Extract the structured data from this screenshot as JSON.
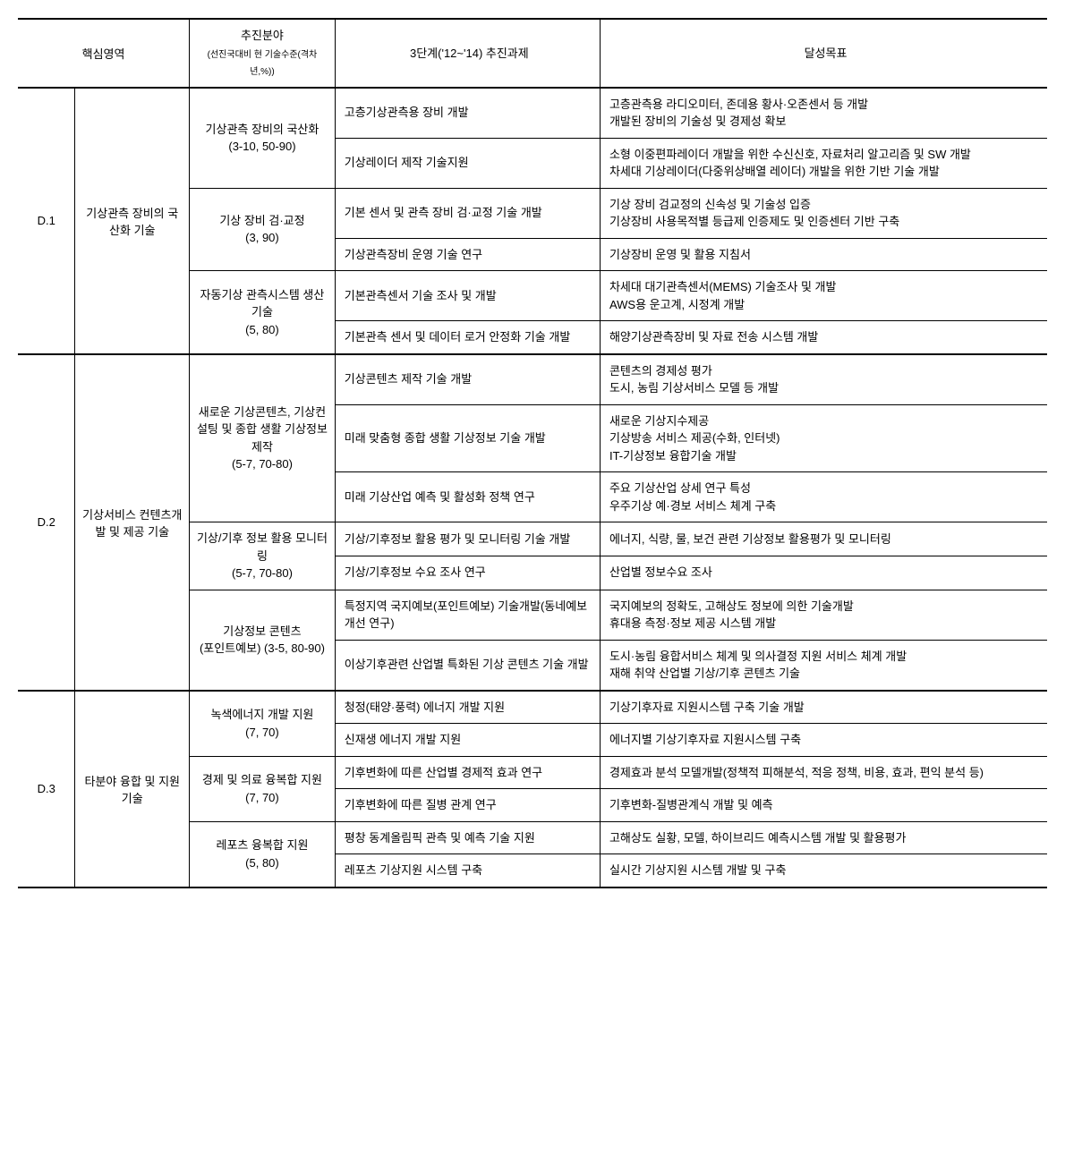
{
  "header": {
    "col1": "핵심영역",
    "col2_main": "추진분야",
    "col2_sub": "(선진국대비 현 기술수준(격차년,%))",
    "col3": "3단계('12~'14)  추진과제",
    "col4": "달성목표"
  },
  "sections": [
    {
      "code": "D.1",
      "area": "기상관측 장비의 국산화 기술",
      "groups": [
        {
          "field": "기상관측 장비의 국산화 (3-10, 50-90)",
          "rows": [
            {
              "task": "고층기상관측용 장비 개발",
              "goal": "고층관측용 라디오미터, 존데용 황사·오존센서 등 개발\n개발된 장비의 기술성 및 경제성 확보"
            },
            {
              "task": "기상레이더 제작 기술지원",
              "goal": "소형 이중편파레이더 개발을 위한 수신신호, 자료처리 알고리즘 및 SW 개발\n차세대 기상레이더(다중위상배열 레이더) 개발을 위한 기반 기술 개발"
            }
          ]
        },
        {
          "field": "기상 장비 검·교정 (3, 90)",
          "rows": [
            {
              "task": "기본 센서 및 관측 장비 검·교정 기술 개발",
              "goal": "기상 장비 검교정의 신속성 및 기술성 입증\n기상장비 사용목적별 등급제 인증제도 및 인증센터 기반 구축"
            },
            {
              "task": "기상관측장비 운영 기술 연구",
              "goal": "기상장비 운영 및 활용 지침서"
            }
          ]
        },
        {
          "field": "자동기상 관측시스템 생산 기술 (5, 80)",
          "rows": [
            {
              "task": "기본관측센서 기술 조사 및 개발",
              "goal": "차세대 대기관측센서(MEMS) 기술조사 및 개발\nAWS용 운고계, 시정계 개발"
            },
            {
              "task": "기본관측 센서 및 데이터 로거 안정화 기술 개발",
              "goal": "해양기상관측장비 및 자료 전송 시스템 개발"
            }
          ]
        }
      ]
    },
    {
      "code": "D.2",
      "area": "기상서비스 컨텐츠개발 및 제공 기술",
      "groups": [
        {
          "field": "새로운 기상콘텐츠, 기상컨설팅 및 종합 생활 기상정보 제작 (5-7, 70-80)",
          "rows": [
            {
              "task": "기상콘텐츠 제작 기술 개발",
              "goal": "콘텐츠의 경제성 평가\n도시, 농림 기상서비스 모델 등 개발"
            },
            {
              "task": "미래 맞춤형 종합 생활 기상정보 기술 개발",
              "goal": "새로운 기상지수제공\n기상방송 서비스 제공(수화, 인터넷)\nIT-기상정보 융합기술 개발"
            },
            {
              "task": "미래 기상산업 예측 및 활성화 정책 연구",
              "goal": "주요 기상산업 상세 연구 특성\n우주기상 예·경보 서비스 체계 구축"
            }
          ]
        },
        {
          "field": "기상/기후 정보 활용 모니터링 (5-7, 70-80)",
          "rows": [
            {
              "task": "기상/기후정보 활용 평가 및 모니터링 기술 개발",
              "goal": "에너지, 식량, 물, 보건 관련 기상정보 활용평가 및 모니터링"
            },
            {
              "task": "기상/기후정보 수요 조사 연구",
              "goal": "산업별 정보수요 조사"
            }
          ]
        },
        {
          "field": "기상정보 콘텐츠 (포인트예보) (3-5, 80-90)",
          "rows": [
            {
              "task": "특정지역 국지예보(포인트예보) 기술개발(동네예보 개선 연구)",
              "goal": "국지예보의 정확도, 고해상도 정보에 의한 기술개발\n휴대용 측정·정보 제공 시스템 개발"
            },
            {
              "task": "이상기후관련 산업별 특화된 기상 콘텐츠 기술 개발",
              "goal": "도시·농림 융합서비스 체계 및 의사결정 지원 서비스 체계 개발\n재해 취약 산업별 기상/기후 콘텐츠 기술"
            }
          ]
        }
      ]
    },
    {
      "code": "D.3",
      "area": "타분야 융합 및 지원 기술",
      "groups": [
        {
          "field": "녹색에너지 개발 지원 (7, 70)",
          "rows": [
            {
              "task": "청정(태양·풍력) 에너지 개발 지원",
              "goal": "기상기후자료 지원시스템 구축 기술 개발"
            },
            {
              "task": "신재생 에너지 개발 지원",
              "goal": "에너지별 기상기후자료 지원시스템 구축"
            }
          ]
        },
        {
          "field": "경제 및 의료 융복합 지원 (7, 70)",
          "rows": [
            {
              "task": "기후변화에 따른 산업별 경제적 효과 연구",
              "goal": "경제효과 분석 모델개발(정책적 피해분석, 적응 정책, 비용, 효과, 편익 분석 등)"
            },
            {
              "task": "기후변화에 따른 질병 관계 연구",
              "goal": "기후변화-질병관계식 개발 및 예측"
            }
          ]
        },
        {
          "field": "레포츠 융복합 지원 (5, 80)",
          "rows": [
            {
              "task": "평창 동계올림픽 관측 및 예측 기술 지원",
              "goal": "고해상도 실황, 모델, 하이브리드 예측시스템 개발 및 활용평가"
            },
            {
              "task": "레포츠 기상지원 시스템 구축",
              "goal": "실시간 기상지원 시스템 개발 및 구축"
            }
          ]
        }
      ]
    }
  ]
}
